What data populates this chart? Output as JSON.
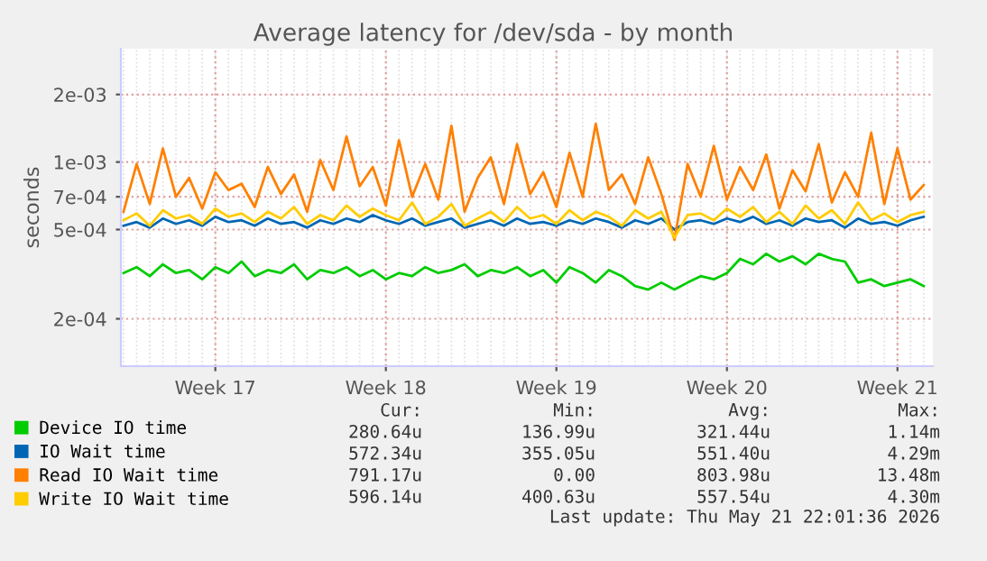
{
  "chart_data": {
    "type": "line",
    "title": "Average latency for /dev/sda - by month",
    "ylabel": "seconds",
    "log": "y",
    "grid": true,
    "legend": "bottom",
    "line_style": "solid",
    "marker": "none",
    "categories": [
      null,
      null,
      null,
      null,
      null,
      null,
      null,
      "Week 17",
      null,
      null,
      null,
      null,
      null,
      null,
      null,
      null,
      null,
      null,
      null,
      null,
      "Week 18",
      null,
      null,
      null,
      null,
      null,
      null,
      null,
      null,
      null,
      null,
      null,
      null,
      "Week 19",
      null,
      null,
      null,
      null,
      null,
      null,
      null,
      null,
      null,
      null,
      null,
      null,
      "Week 20",
      null,
      null,
      null,
      null,
      null,
      null,
      null,
      null,
      null,
      null,
      null,
      null,
      "Week 21",
      null,
      null
    ],
    "ylim": [
      0.000123,
      0.0032
    ],
    "yticks": [
      {
        "value": 0.0002,
        "label": "2e-04"
      },
      {
        "value": 0.0005,
        "label": "5e-04"
      },
      {
        "value": 0.0007,
        "label": "7e-04"
      },
      {
        "value": 0.001,
        "label": "1e-03"
      },
      {
        "value": 0.002,
        "label": "2e-03"
      }
    ],
    "series": [
      {
        "name": "Device IO time",
        "color": "#00cc00",
        "values": [
          0.00032,
          0.00034,
          0.00031,
          0.00035,
          0.00032,
          0.00033,
          0.0003,
          0.00034,
          0.00032,
          0.00036,
          0.00031,
          0.00033,
          0.00032,
          0.00035,
          0.0003,
          0.00033,
          0.00032,
          0.00034,
          0.00031,
          0.00033,
          0.0003,
          0.00032,
          0.00031,
          0.00034,
          0.00032,
          0.00033,
          0.00035,
          0.00031,
          0.00033,
          0.00032,
          0.00034,
          0.00031,
          0.00033,
          0.00029,
          0.00034,
          0.00032,
          0.00029,
          0.00033,
          0.00031,
          0.00028,
          0.00027,
          0.00029,
          0.00027,
          0.00029,
          0.00031,
          0.0003,
          0.00032,
          0.00037,
          0.00035,
          0.00039,
          0.00036,
          0.00038,
          0.00035,
          0.00039,
          0.00037,
          0.00036,
          0.00029,
          0.0003,
          0.00028,
          0.00029,
          0.0003,
          0.00028
        ]
      },
      {
        "name": "IO Wait time",
        "color": "#0066b3",
        "values": [
          0.00052,
          0.00054,
          0.00051,
          0.00056,
          0.00053,
          0.00055,
          0.00052,
          0.00057,
          0.00054,
          0.00055,
          0.00052,
          0.00056,
          0.00053,
          0.00054,
          0.00051,
          0.00055,
          0.00053,
          0.00056,
          0.00054,
          0.00058,
          0.00055,
          0.00053,
          0.00056,
          0.00052,
          0.00054,
          0.00056,
          0.00051,
          0.00053,
          0.00055,
          0.00052,
          0.00056,
          0.00053,
          0.00054,
          0.00052,
          0.00055,
          0.00053,
          0.00056,
          0.00054,
          0.00051,
          0.00055,
          0.00053,
          0.00056,
          0.0005,
          0.00054,
          0.00055,
          0.00053,
          0.00056,
          0.00054,
          0.00057,
          0.00053,
          0.00055,
          0.00052,
          0.00056,
          0.00054,
          0.00055,
          0.00051,
          0.00056,
          0.00053,
          0.00054,
          0.00052,
          0.00055,
          0.00057
        ]
      },
      {
        "name": "Read IO Wait time",
        "color": "#ff8000",
        "values": [
          0.0006,
          0.00098,
          0.00065,
          0.00115,
          0.0007,
          0.00085,
          0.00062,
          0.0009,
          0.00075,
          0.0008,
          0.00063,
          0.00095,
          0.00072,
          0.00088,
          0.0006,
          0.00102,
          0.00075,
          0.0013,
          0.00078,
          0.00095,
          0.00064,
          0.00125,
          0.0007,
          0.00098,
          0.00068,
          0.00145,
          0.0006,
          0.00085,
          0.00105,
          0.00065,
          0.0012,
          0.00072,
          0.0009,
          0.00063,
          0.0011,
          0.0007,
          0.00148,
          0.00075,
          0.00088,
          0.00065,
          0.00105,
          0.00072,
          0.00045,
          0.00098,
          0.0007,
          0.00118,
          0.00068,
          0.00095,
          0.00075,
          0.00108,
          0.00062,
          0.00092,
          0.00074,
          0.0012,
          0.00066,
          0.0009,
          0.0007,
          0.00135,
          0.00065,
          0.00115,
          0.00068,
          0.00079
        ]
      },
      {
        "name": "Write IO Wait time",
        "color": "#ffcc00",
        "values": [
          0.00055,
          0.00059,
          0.00052,
          0.00061,
          0.00056,
          0.00058,
          0.00053,
          0.00062,
          0.00057,
          0.00059,
          0.00054,
          0.0006,
          0.00056,
          0.00063,
          0.00053,
          0.00058,
          0.00055,
          0.00064,
          0.00057,
          0.00062,
          0.00058,
          0.00055,
          0.00066,
          0.00053,
          0.00057,
          0.00065,
          0.00052,
          0.00056,
          0.0006,
          0.00054,
          0.00063,
          0.00056,
          0.00058,
          0.00053,
          0.00061,
          0.00055,
          0.0006,
          0.00057,
          0.00052,
          0.00061,
          0.00056,
          0.0006,
          0.00046,
          0.00058,
          0.00059,
          0.00055,
          0.00062,
          0.00057,
          0.00063,
          0.00054,
          0.0006,
          0.00053,
          0.00064,
          0.00056,
          0.00061,
          0.00053,
          0.00066,
          0.00055,
          0.00059,
          0.00054,
          0.00058,
          0.0006
        ]
      }
    ],
    "annotations": [
      "Cur:",
      "Min:",
      "Avg:",
      "Max:",
      "280.64u",
      "136.99u",
      "321.44u",
      "1.14m",
      "572.34u",
      "355.05u",
      "551.40u",
      "4.29m",
      "791.17u",
      "0.00",
      "803.98u",
      "13.48m",
      "596.14u",
      "400.63u",
      "557.54u",
      "4.30m",
      "Last update: Thu May 21 22:01:36 2026"
    ]
  }
}
